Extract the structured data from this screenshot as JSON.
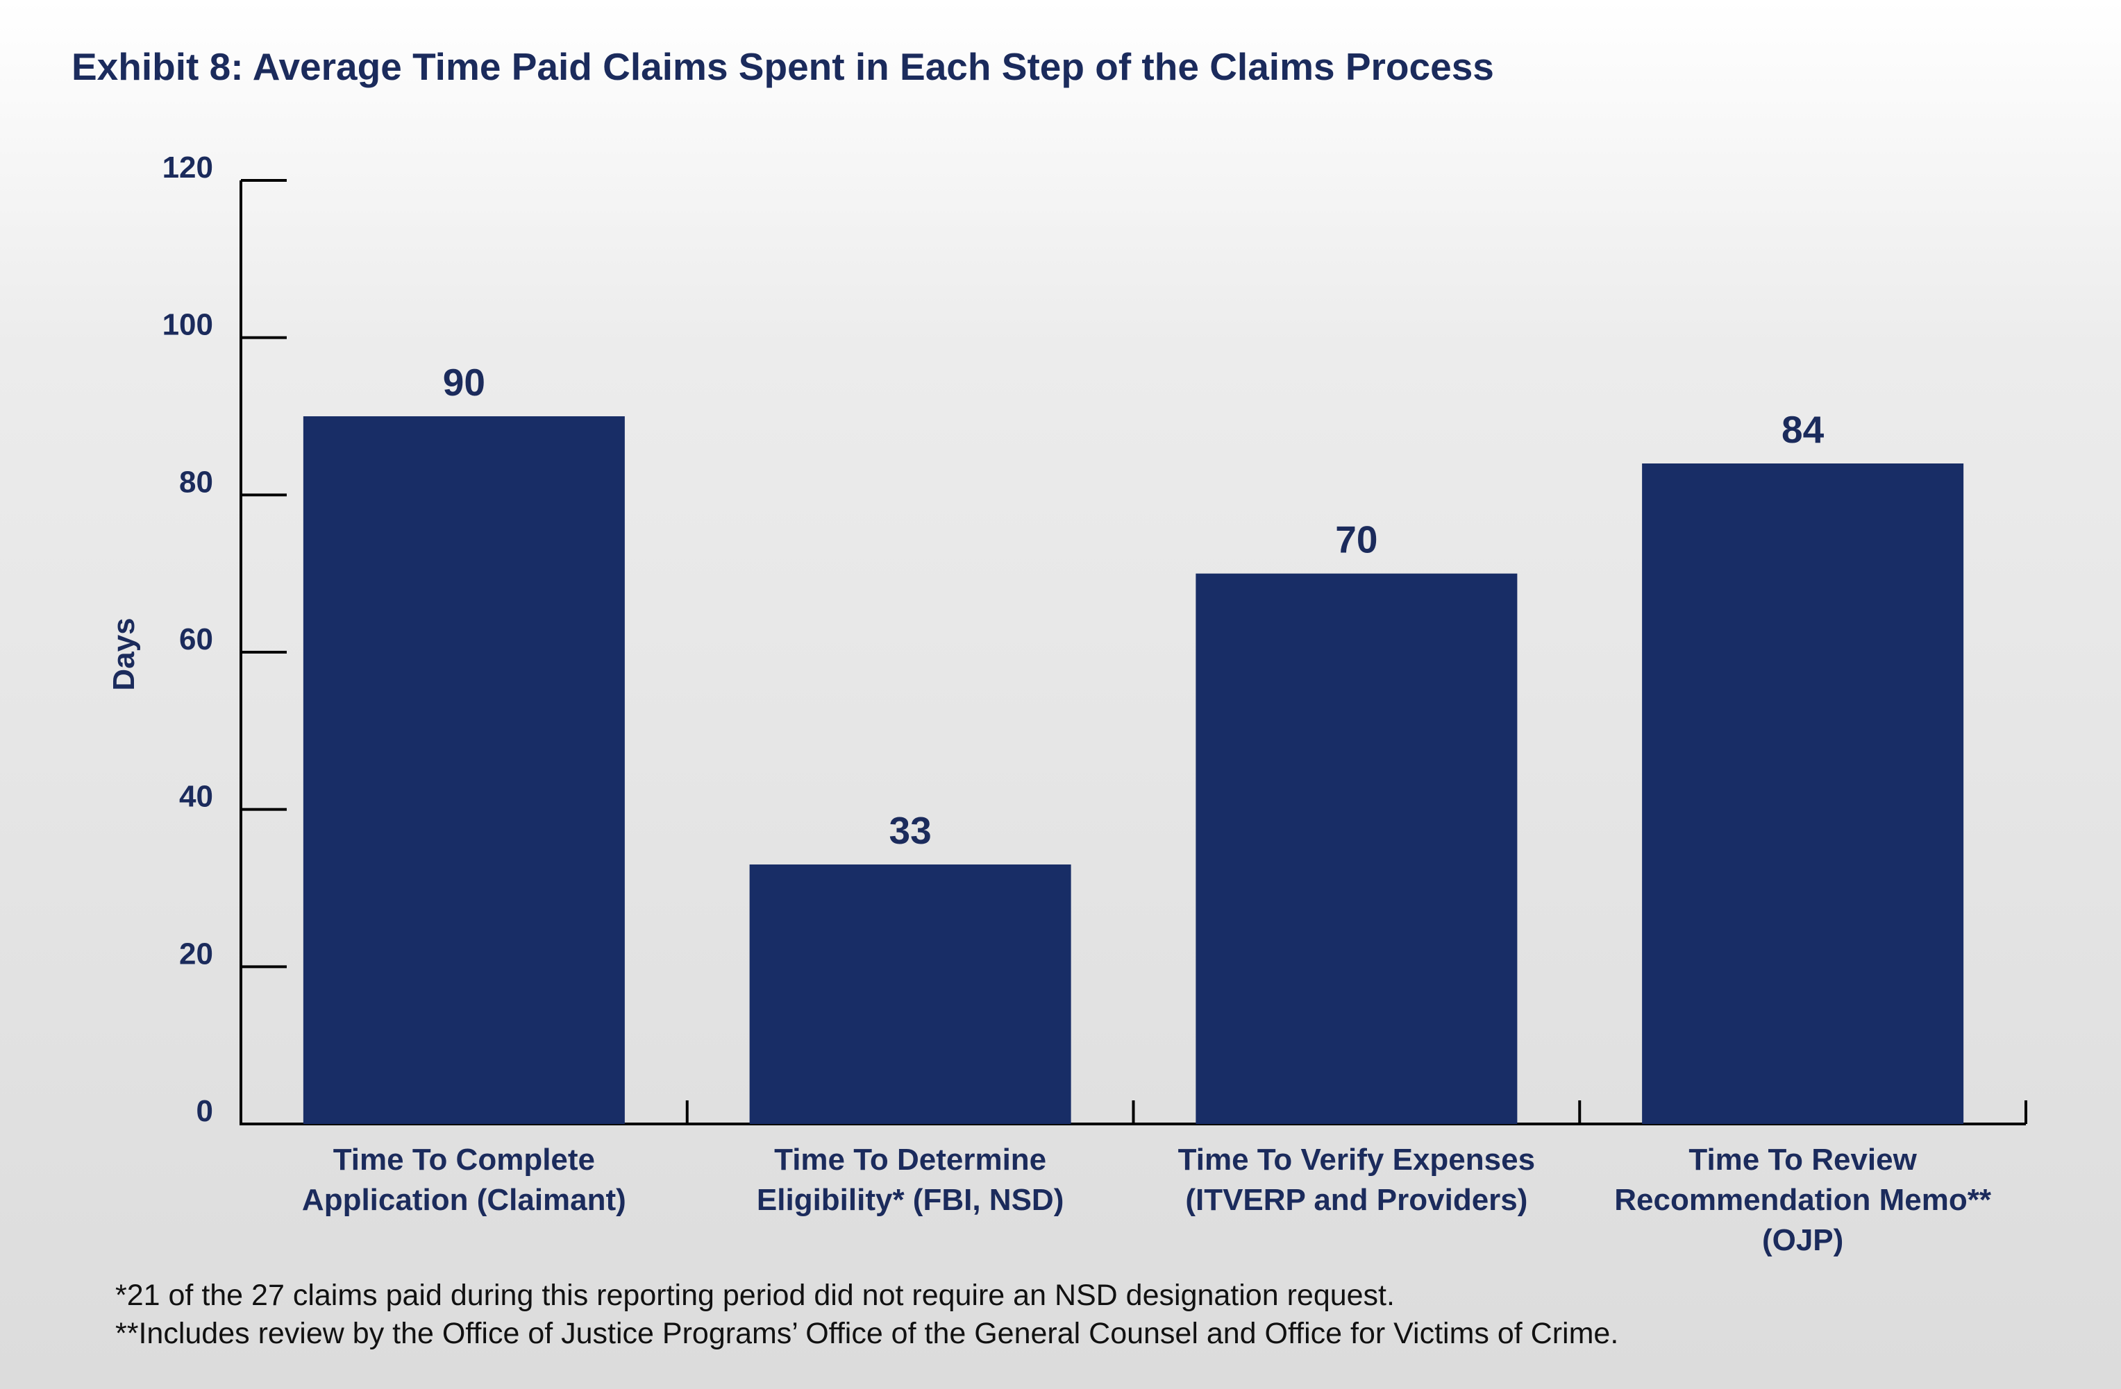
{
  "title": "Exhibit 8: Average Time Paid Claims Spent in Each Step of the Claims Process",
  "colors": {
    "bar": "#182d66",
    "text": "#1b2b5c",
    "axis": "#000000"
  },
  "chart_data": {
    "type": "bar",
    "title": "Exhibit 8: Average Time Paid Claims Spent in Each Step of the Claims Process",
    "xlabel": "",
    "ylabel": "Days",
    "ylim": [
      0,
      120
    ],
    "yticks": [
      "0",
      "20",
      "40",
      "60",
      "80",
      "100",
      "120"
    ],
    "grid": false,
    "categories": [
      [
        "Time To Complete",
        "Application (Claimant)"
      ],
      [
        "Time To Determine",
        "Eligibility* (FBI, NSD)"
      ],
      [
        "Time To Verify Expenses",
        "(ITVERP and Providers)"
      ],
      [
        "Time To Review",
        "Recommendation Memo**",
        "(OJP)"
      ]
    ],
    "values": [
      90,
      33,
      70,
      84
    ],
    "data_labels": [
      "90",
      "33",
      "70",
      "84"
    ]
  },
  "footnotes": [
    "*21 of the 27 claims paid during this reporting period did not require an NSD designation request.",
    "**Includes review by the Office of Justice Programs’ Office of the General Counsel and Office for Victims of Crime."
  ]
}
